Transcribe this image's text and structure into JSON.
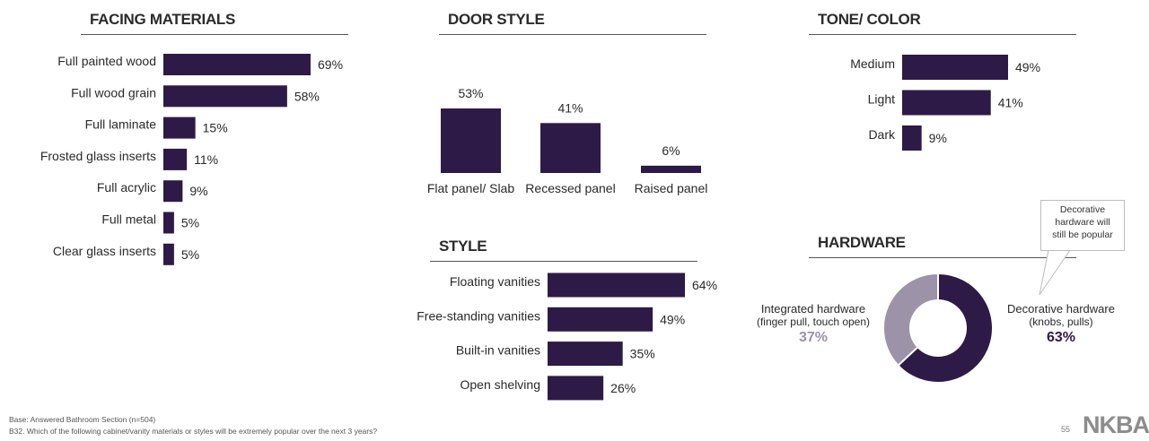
{
  "sections": {
    "facing_title": "FACING MATERIALS",
    "door_title": "DOOR STYLE",
    "tone_title": "TONE/ COLOR",
    "style_title": "STYLE",
    "hardware_title": "HARDWARE"
  },
  "colors": {
    "bar": "#2e1a47",
    "donut_light": "#9c93a8",
    "text": "#2a2a2a"
  },
  "chart_data": [
    {
      "id": "facing",
      "type": "bar",
      "orientation": "horizontal",
      "title": "FACING MATERIALS",
      "categories": [
        "Full painted wood",
        "Full wood grain",
        "Full laminate",
        "Frosted glass inserts",
        "Full acrylic",
        "Full metal",
        "Clear glass inserts"
      ],
      "values": [
        69,
        58,
        15,
        11,
        9,
        5,
        5
      ],
      "labels": [
        "69%",
        "58%",
        "15%",
        "11%",
        "9%",
        "5%",
        "5%"
      ],
      "unit": "%"
    },
    {
      "id": "door",
      "type": "bar",
      "orientation": "vertical",
      "title": "DOOR STYLE",
      "categories": [
        "Flat panel/ Slab",
        "Recessed panel",
        "Raised panel"
      ],
      "values": [
        53,
        41,
        6
      ],
      "labels": [
        "53%",
        "41%",
        "6%"
      ],
      "unit": "%"
    },
    {
      "id": "tone",
      "type": "bar",
      "orientation": "horizontal",
      "title": "TONE/ COLOR",
      "categories": [
        "Medium",
        "Light",
        "Dark"
      ],
      "values": [
        49,
        41,
        9
      ],
      "labels": [
        "49%",
        "41%",
        "9%"
      ],
      "unit": "%"
    },
    {
      "id": "style",
      "type": "bar",
      "orientation": "horizontal",
      "title": "STYLE",
      "categories": [
        "Floating vanities",
        "Free-standing vanities",
        "Built-in vanities",
        "Open shelving"
      ],
      "values": [
        64,
        49,
        35,
        26
      ],
      "labels": [
        "64%",
        "49%",
        "35%",
        "26%"
      ],
      "unit": "%"
    },
    {
      "id": "hardware",
      "type": "pie",
      "title": "HARDWARE",
      "categories": [
        "Decorative hardware (knobs, pulls)",
        "Integrated hardware (finger pull, touch open)"
      ],
      "values": [
        63,
        37
      ],
      "labels": [
        "63%",
        "37%"
      ]
    }
  ],
  "hardware": {
    "integrated_line1": "Integrated hardware",
    "integrated_line2": "(finger pull, touch open)",
    "integrated_pct": "37%",
    "decorative_line1": "Decorative hardware",
    "decorative_line2": "(knobs, pulls)",
    "decorative_pct": "63%",
    "callout_line1": "Decorative",
    "callout_line2": "hardware will",
    "callout_line3": "still be popular"
  },
  "footer": {
    "base": "Base:  Answered Bathroom Section (n=504)",
    "question": "B32.  Which of the following cabinet/vanity materials or styles will be extremely popular over the next 3 years?",
    "page": "55",
    "logo": "NKBA"
  }
}
